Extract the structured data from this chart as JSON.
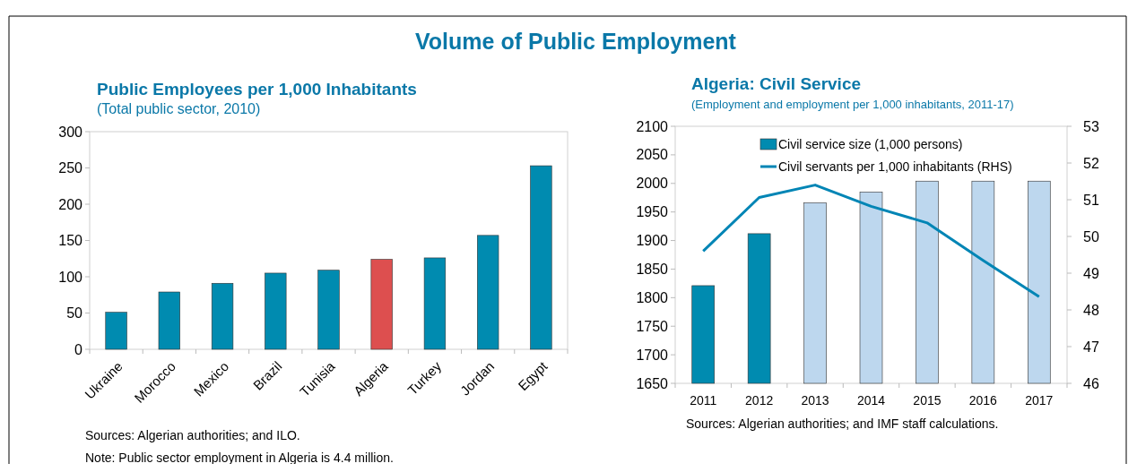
{
  "chart_data": [
    {
      "type": "bar",
      "title": "Public Employees per 1,000 Inhabitants",
      "subtitle": "(Total public sector, 2010)",
      "categories": [
        "Ukraine",
        "Morocco",
        "Mexico",
        "Brazil",
        "Tunisia",
        "Algeria",
        "Turkey",
        "Jordan",
        "Egypt"
      ],
      "values": [
        51,
        79,
        91,
        105,
        109,
        124,
        126,
        157,
        253
      ],
      "colors": [
        "#008bb0",
        "#008bb0",
        "#008bb0",
        "#008bb0",
        "#008bb0",
        "#dd4f4f",
        "#008bb0",
        "#008bb0",
        "#008bb0"
      ],
      "ylim": [
        0,
        300
      ],
      "yticks": [
        0,
        50,
        100,
        150,
        200,
        250,
        300
      ],
      "grid": false,
      "legend": false,
      "annotations": [
        "Volume of Public Employment",
        "Sources: Algerian authorities; and ILO.",
        "Note: Public sector employment in Algeria is 4.4 million."
      ]
    },
    {
      "type": "bar",
      "title": "Algeria: Civil Service",
      "subtitle": "(Employment and employment per 1,000 inhabitants, 2011-17)",
      "categories": [
        "2011",
        "2012",
        "2013",
        "2014",
        "2015",
        "2016",
        "2017"
      ],
      "series": [
        {
          "name": "Civil service size (1,000 persons)",
          "color": "#008bb0",
          "colors": [
            "#008bb0",
            "#008bb0",
            "#bdd7ee",
            "#bdd7ee",
            "#bdd7ee",
            "#bdd7ee",
            "#bdd7ee"
          ],
          "values": [
            1821,
            1912,
            1966,
            1985,
            2004,
            2004,
            2004
          ]
        },
        {
          "name": "Civil servants per 1,000 inhabitants (RHS)",
          "type": "line",
          "axis": "y2",
          "color": "#0085b5",
          "values": [
            49.6,
            51.06,
            51.4,
            50.82,
            50.37,
            49.35,
            48.36
          ]
        }
      ],
      "ylim": [
        1650,
        2100
      ],
      "yticks": [
        1650,
        1700,
        1750,
        1800,
        1850,
        1900,
        1950,
        2000,
        2050,
        2100
      ],
      "y2lim": [
        46,
        53
      ],
      "y2ticks": [
        46,
        47,
        48,
        49,
        50,
        51,
        52,
        53
      ],
      "grid": false,
      "legend": "top",
      "marker": "none",
      "annotations": [
        "Sources: Algerian authorities; and IMF staff calculations."
      ]
    }
  ]
}
